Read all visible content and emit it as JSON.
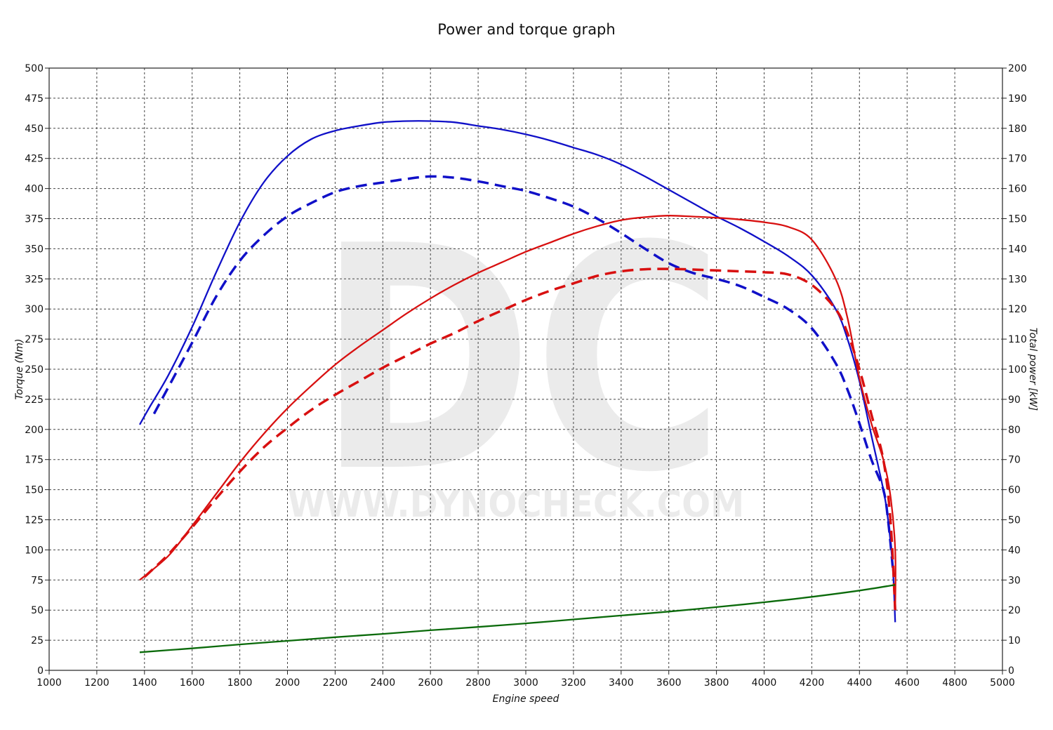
{
  "chart_data": {
    "type": "line",
    "title": "Power and torque graph",
    "xlabel": "Engine speed",
    "ylabel_left": "Torque (Nm)",
    "ylabel_right": "Total power [kW]",
    "xlim": [
      1000,
      5000
    ],
    "ylim_left": [
      0,
      500
    ],
    "ylim_right": [
      0,
      200
    ],
    "x_ticks": [
      1000,
      1200,
      1400,
      1600,
      1800,
      2000,
      2200,
      2400,
      2600,
      2800,
      3000,
      3200,
      3400,
      3600,
      3800,
      4000,
      4200,
      4400,
      4600,
      4800,
      5000
    ],
    "y_ticks_left": [
      0,
      25,
      50,
      75,
      100,
      125,
      150,
      175,
      200,
      225,
      250,
      275,
      300,
      325,
      350,
      375,
      400,
      425,
      450,
      475,
      500
    ],
    "y_ticks_right": [
      0,
      10,
      20,
      30,
      40,
      50,
      60,
      70,
      80,
      90,
      100,
      110,
      120,
      130,
      140,
      150,
      160,
      170,
      180,
      190,
      200
    ],
    "grid": true,
    "legend": "none",
    "colors": {
      "torque": "#1010c8",
      "power": "#d81010",
      "loss": "#0a6a0a"
    },
    "series": [
      {
        "axis": "left",
        "color": "#1010c8",
        "dash": false,
        "x": [
          1380,
          1420,
          1500,
          1600,
          1700,
          1800,
          1900,
          2000,
          2100,
          2200,
          2300,
          2400,
          2500,
          2600,
          2700,
          2800,
          2900,
          3000,
          3100,
          3200,
          3300,
          3400,
          3500,
          3600,
          3700,
          3800,
          3900,
          4000,
          4100,
          4200,
          4300,
          4350,
          4400,
          4450,
          4500,
          4520,
          4540,
          4550
        ],
        "y": [
          204,
          218,
          245,
          285,
          330,
          372,
          405,
          427,
          441,
          448,
          452,
          455,
          456,
          456,
          455,
          452,
          449,
          445,
          440,
          434,
          428,
          420,
          410,
          399,
          388,
          377,
          367,
          356,
          344,
          328,
          300,
          275,
          240,
          195,
          150,
          125,
          85,
          40
        ]
      },
      {
        "axis": "left",
        "color": "#1010c8",
        "dash": true,
        "x": [
          1440,
          1500,
          1600,
          1700,
          1800,
          1900,
          2000,
          2100,
          2200,
          2300,
          2400,
          2500,
          2600,
          2700,
          2800,
          2900,
          3000,
          3100,
          3200,
          3300,
          3400,
          3500,
          3600,
          3700,
          3800,
          3900,
          4000,
          4100,
          4200,
          4300,
          4350,
          4400,
          4450,
          4500,
          4520,
          4540
        ],
        "y": [
          213,
          235,
          272,
          310,
          340,
          361,
          377,
          388,
          397,
          402,
          405,
          408,
          410,
          409,
          406,
          402,
          398,
          392,
          385,
          375,
          363,
          350,
          338,
          330,
          325,
          319,
          310,
          300,
          284,
          255,
          233,
          205,
          175,
          150,
          125,
          85
        ]
      },
      {
        "axis": "right",
        "color": "#d81010",
        "dash": false,
        "x": [
          1380,
          1500,
          1600,
          1700,
          1800,
          1900,
          2000,
          2100,
          2200,
          2300,
          2400,
          2500,
          2600,
          2700,
          2800,
          2900,
          3000,
          3100,
          3200,
          3300,
          3400,
          3500,
          3600,
          3700,
          3800,
          3900,
          4000,
          4100,
          4200,
          4300,
          4350,
          4400,
          4450,
          4500,
          4530,
          4550,
          4550
        ],
        "y": [
          30,
          38,
          48,
          58.5,
          69,
          78.5,
          87,
          94.5,
          101.5,
          107.5,
          113,
          118.5,
          123.5,
          128,
          132,
          135.5,
          139,
          142,
          145,
          147.5,
          149.5,
          150.5,
          151,
          150.7,
          150.3,
          149.7,
          148.8,
          147.3,
          143,
          130,
          117,
          97,
          82,
          70,
          58,
          40,
          20
        ]
      },
      {
        "axis": "right",
        "color": "#d81010",
        "dash": true,
        "x": [
          1400,
          1500,
          1600,
          1700,
          1800,
          1900,
          2000,
          2100,
          2200,
          2300,
          2400,
          2500,
          2600,
          2700,
          2800,
          2900,
          3000,
          3100,
          3200,
          3300,
          3400,
          3500,
          3600,
          3700,
          3800,
          3900,
          4000,
          4100,
          4200,
          4300,
          4350,
          4400,
          4450,
          4500,
          4530,
          4550
        ],
        "y": [
          31,
          38.5,
          47.5,
          57,
          66,
          74,
          80.5,
          86.5,
          91.5,
          96,
          100.5,
          104.5,
          108.5,
          112,
          116,
          119.5,
          123,
          126,
          128.5,
          131,
          132.5,
          133.2,
          133.3,
          133.1,
          132.8,
          132.5,
          132.2,
          131.5,
          128,
          120,
          112,
          100,
          85,
          70,
          50,
          20
        ]
      },
      {
        "axis": "right",
        "color": "#0a6a0a",
        "dash": false,
        "x": [
          1380,
          1600,
          1800,
          2000,
          2200,
          2400,
          2600,
          2800,
          3000,
          3200,
          3400,
          3600,
          3800,
          4000,
          4200,
          4400,
          4550
        ],
        "y": [
          6,
          7.3,
          8.6,
          9.8,
          11,
          12.1,
          13.3,
          14.4,
          15.6,
          16.9,
          18.2,
          19.5,
          21,
          22.6,
          24.4,
          26.5,
          28.4
        ]
      }
    ]
  },
  "watermark": {
    "logo": "DC",
    "url": "WWW.DYNOCHECK.COM"
  }
}
